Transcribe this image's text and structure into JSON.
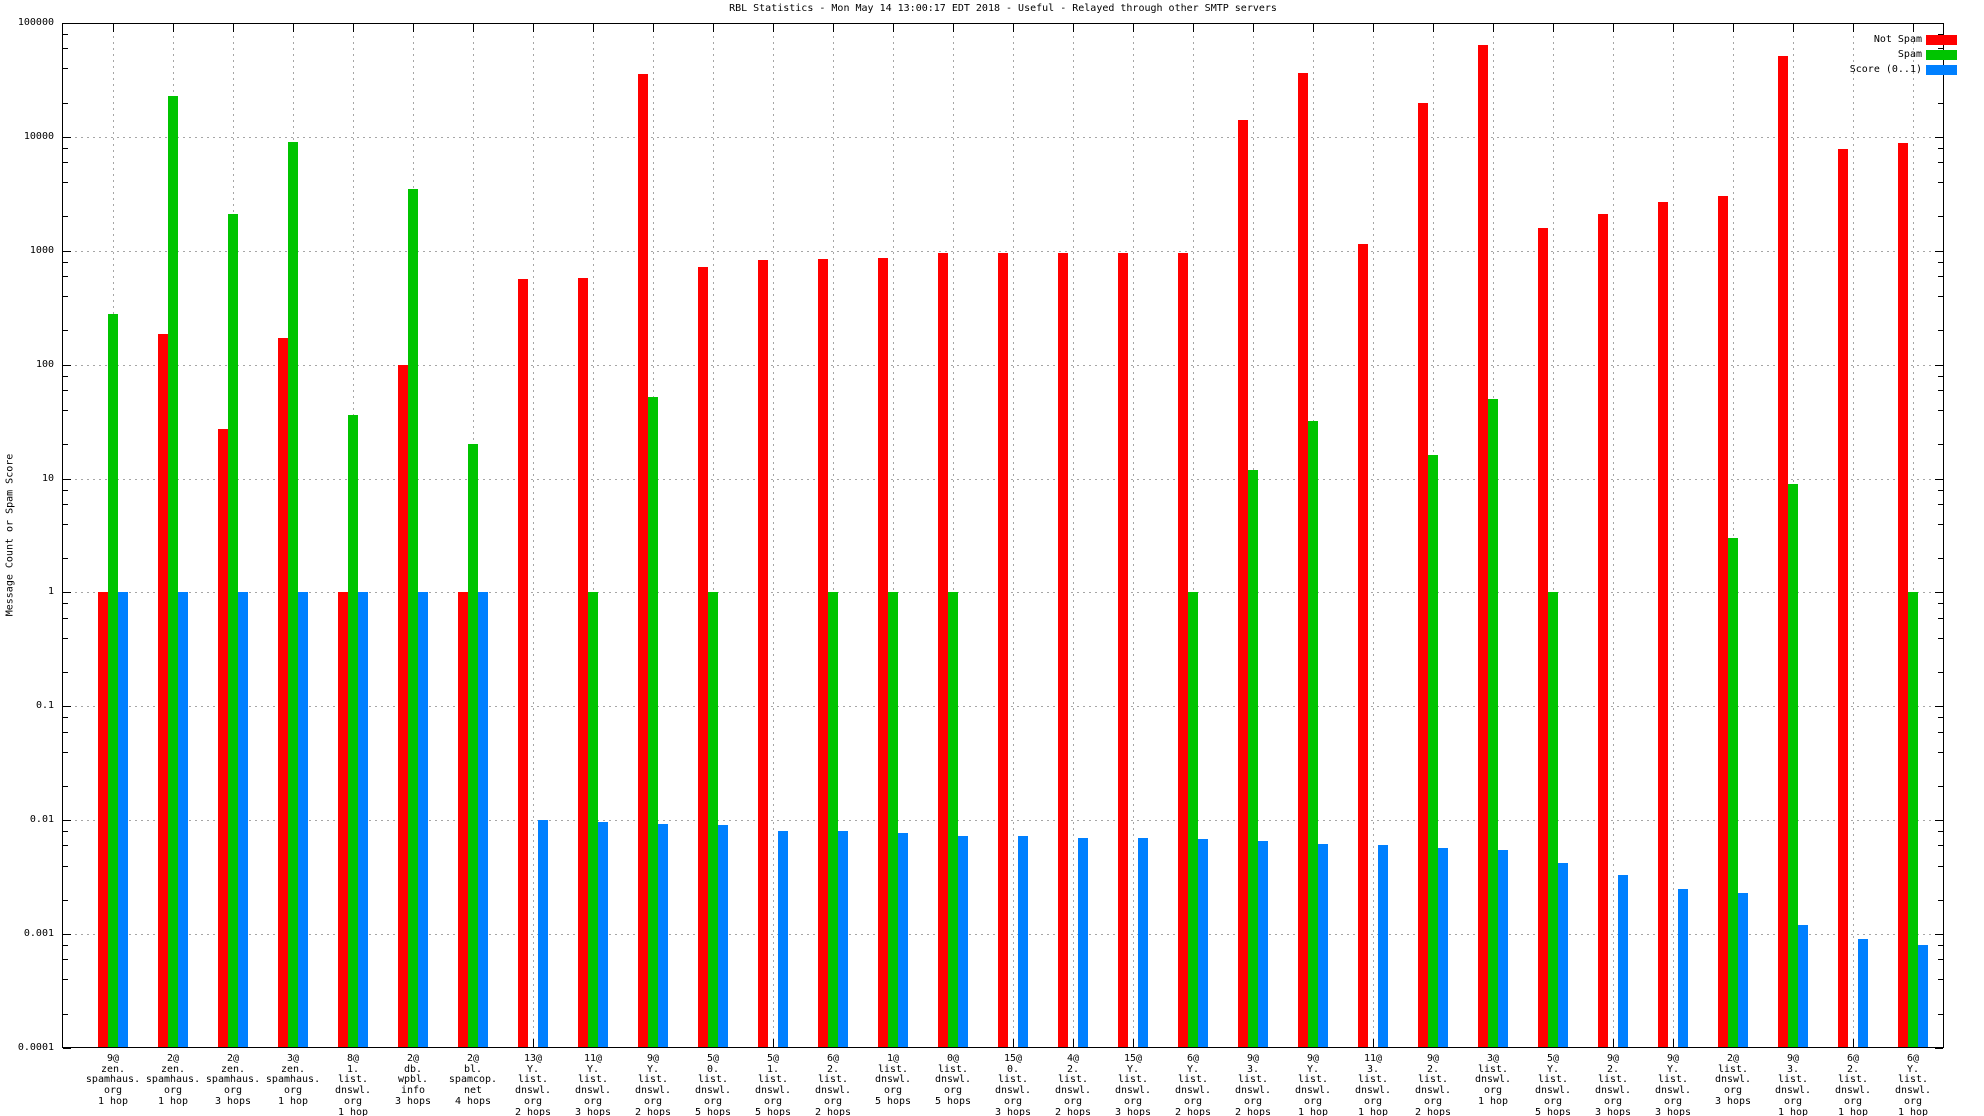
{
  "chart_data": {
    "type": "bar",
    "y_scale": "log",
    "ylim": [
      0.0001,
      100000
    ],
    "grid": true,
    "title": "RBL Statistics - Mon May 14 13:00:17 EDT 2018 - Useful - Relayed through other SMTP servers",
    "ylabel": "Message Count or Spam Score",
    "y_tick_labels": [
      "100000",
      "10000",
      "1000",
      "100",
      "10",
      "1",
      "0.1",
      "0.01",
      "0.001",
      "0.0001"
    ],
    "legend_position": "top-right",
    "series": [
      {
        "name": "Not Spam",
        "color": "#ff0000",
        "key": "not_spam"
      },
      {
        "name": "Spam",
        "color": "#00c400",
        "key": "spam"
      },
      {
        "name": "Score (0..1)",
        "color": "#0080ff",
        "key": "score"
      }
    ],
    "groups": [
      {
        "label": "9@ zen.spamhaus.org 1 hop",
        "label_lines": [
          "9@",
          "zen.",
          "spamhaus.",
          "org",
          "1 hop"
        ],
        "not_spam": 1,
        "spam": 280,
        "score": 1.0
      },
      {
        "label": "2@ zen.spamhaus.org 1 hop",
        "label_lines": [
          "2@",
          "zen.",
          "spamhaus.",
          "org",
          "1 hop"
        ],
        "not_spam": 185,
        "spam": 23000,
        "score": 1.0
      },
      {
        "label": "2@ zen.spamhaus.org 3 hops",
        "label_lines": [
          "2@",
          "zen.",
          "spamhaus.",
          "org",
          "3 hops"
        ],
        "not_spam": 27,
        "spam": 2100,
        "score": 1.0
      },
      {
        "label": "3@ zen.spamhaus.org 1 hop",
        "label_lines": [
          "3@",
          "zen.",
          "spamhaus.",
          "org",
          "1 hop"
        ],
        "not_spam": 170,
        "spam": 9100,
        "score": 1.0
      },
      {
        "label": "8@ 1.list.dnswl.org 1 hop",
        "label_lines": [
          "8@",
          "1.",
          "list.",
          "dnswl.",
          "org",
          "1 hop"
        ],
        "not_spam": 1,
        "spam": 36,
        "score": 1.0
      },
      {
        "label": "2@ db.wpbl.info 3 hops",
        "label_lines": [
          "2@",
          "db.",
          "wpbl.",
          "info",
          "3 hops"
        ],
        "not_spam": 100,
        "spam": 3500,
        "score": 1.0
      },
      {
        "label": "2@ bl.spamcop.net 4 hops",
        "label_lines": [
          "2@",
          "bl.",
          "spamcop.",
          "net",
          "4 hops"
        ],
        "not_spam": 1,
        "spam": 20,
        "score": 1.0
      },
      {
        "label": "13@ Y.list.dnswl.org 2 hops",
        "label_lines": [
          "13@",
          "Y.",
          "list.",
          "dnswl.",
          "org",
          "2 hops"
        ],
        "not_spam": 570,
        "spam": null,
        "score": 0.01
      },
      {
        "label": "11@ Y.list.dnswl.org 3 hops",
        "label_lines": [
          "11@",
          "Y.",
          "list.",
          "dnswl.",
          "org",
          "3 hops"
        ],
        "not_spam": 575,
        "spam": 1,
        "score": 0.0097
      },
      {
        "label": "9@ Y.list.dnswl.org 2 hops",
        "label_lines": [
          "9@",
          "Y.",
          "list.",
          "dnswl.",
          "org",
          "2 hops"
        ],
        "not_spam": 36000,
        "spam": 52,
        "score": 0.0092
      },
      {
        "label": "5@ 0.list.dnswl.org 5 hops",
        "label_lines": [
          "5@",
          "0.",
          "list.",
          "dnswl.",
          "org",
          "5 hops"
        ],
        "not_spam": 720,
        "spam": 1,
        "score": 0.009
      },
      {
        "label": "5@ 1.list.dnswl.org 5 hops",
        "label_lines": [
          "5@",
          "1.",
          "list.",
          "dnswl.",
          "org",
          "5 hops"
        ],
        "not_spam": 830,
        "spam": null,
        "score": 0.0081
      },
      {
        "label": "6@ 2.list.dnswl.org 2 hops",
        "label_lines": [
          "6@",
          "2.",
          "list.",
          "dnswl.",
          "org",
          "2 hops"
        ],
        "not_spam": 855,
        "spam": 1,
        "score": 0.008
      },
      {
        "label": "1@ list.dnswl.org 5 hops",
        "label_lines": [
          "1@",
          "list.",
          "dnswl.",
          "org",
          "5 hops"
        ],
        "not_spam": 860,
        "spam": 1,
        "score": 0.0078
      },
      {
        "label": "0@ list.dnswl.org 5 hops",
        "label_lines": [
          "0@",
          "list.",
          "dnswl.",
          "org",
          "5 hops"
        ],
        "not_spam": 950,
        "spam": 1,
        "score": 0.0072
      },
      {
        "label": "15@ 0.list.dnswl.org 3 hops",
        "label_lines": [
          "15@",
          "0.",
          "list.",
          "dnswl.",
          "org",
          "3 hops"
        ],
        "not_spam": 950,
        "spam": null,
        "score": 0.0072
      },
      {
        "label": "4@ 2.list.dnswl.org 2 hops",
        "label_lines": [
          "4@",
          "2.",
          "list.",
          "dnswl.",
          "org",
          "2 hops"
        ],
        "not_spam": 950,
        "spam": null,
        "score": 0.007
      },
      {
        "label": "15@ Y.list.dnswl.org 3 hops",
        "label_lines": [
          "15@",
          "Y.",
          "list.",
          "dnswl.",
          "org",
          "3 hops"
        ],
        "not_spam": 950,
        "spam": null,
        "score": 0.007
      },
      {
        "label": "6@ Y.list.dnswl.org 2 hops",
        "label_lines": [
          "6@",
          "Y.",
          "list.",
          "dnswl.",
          "org",
          "2 hops"
        ],
        "not_spam": 960,
        "spam": 1,
        "score": 0.0068
      },
      {
        "label": "9@ 3.list.dnswl.org 2 hops",
        "label_lines": [
          "9@",
          "3.",
          "list.",
          "dnswl.",
          "org",
          "2 hops"
        ],
        "not_spam": 14000,
        "spam": 12,
        "score": 0.0066
      },
      {
        "label": "9@ Y.list.dnswl.org 1 hop",
        "label_lines": [
          "9@",
          "Y.",
          "list.",
          "dnswl.",
          "org",
          "1 hop"
        ],
        "not_spam": 36500,
        "spam": 32,
        "score": 0.0062
      },
      {
        "label": "11@ 3.list.dnswl.org 1 hop",
        "label_lines": [
          "11@",
          "3.",
          "list.",
          "dnswl.",
          "org",
          "1 hop"
        ],
        "not_spam": 1150,
        "spam": null,
        "score": 0.006
      },
      {
        "label": "9@ 2.list.dnswl.org 2 hops",
        "label_lines": [
          "9@",
          "2.",
          "list.",
          "dnswl.",
          "org",
          "2 hops"
        ],
        "not_spam": 20000,
        "spam": 16,
        "score": 0.0057
      },
      {
        "label": "3@ list.dnswl.org 1 hop",
        "label_lines": [
          "3@",
          "list.",
          "dnswl.",
          "org",
          "1 hop"
        ],
        "not_spam": 64000,
        "spam": 50,
        "score": 0.0055
      },
      {
        "label": "5@ Y.list.dnswl.org 5 hops",
        "label_lines": [
          "5@",
          "Y.",
          "list.",
          "dnswl.",
          "org",
          "5 hops"
        ],
        "not_spam": 1600,
        "spam": 1,
        "score": 0.0042
      },
      {
        "label": "9@ 2.list.dnswl.org 3 hops",
        "label_lines": [
          "9@",
          "2.",
          "list.",
          "dnswl.",
          "org",
          "3 hops"
        ],
        "not_spam": 2100,
        "spam": null,
        "score": 0.0033
      },
      {
        "label": "9@ Y.list.dnswl.org 3 hops",
        "label_lines": [
          "9@",
          "Y.",
          "list.",
          "dnswl.",
          "org",
          "3 hops"
        ],
        "not_spam": 2700,
        "spam": null,
        "score": 0.0025
      },
      {
        "label": "2@ list.dnswl.org 3 hops",
        "label_lines": [
          "2@",
          "list.",
          "dnswl.",
          "org",
          "3 hops"
        ],
        "not_spam": 3000,
        "spam": 3,
        "score": 0.0023
      },
      {
        "label": "9@ 3.list.dnswl.org 1 hop",
        "label_lines": [
          "9@",
          "3.",
          "list.",
          "dnswl.",
          "org",
          "1 hop"
        ],
        "not_spam": 51000,
        "spam": 9,
        "score": 0.0012
      },
      {
        "label": "6@ 2.list.dnswl.org 1 hop",
        "label_lines": [
          "6@",
          "2.",
          "list.",
          "dnswl.",
          "org",
          "1 hop"
        ],
        "not_spam": 7800,
        "spam": null,
        "score": 0.0009
      },
      {
        "label": "6@ Y.list.dnswl.org 1 hop",
        "label_lines": [
          "6@",
          "Y.",
          "list.",
          "dnswl.",
          "org",
          "1 hop"
        ],
        "not_spam": 8800,
        "spam": 1,
        "score": 0.0008
      }
    ]
  },
  "colors": {
    "background": "#ffffff",
    "axis": "#000000",
    "grid": "#a6a6a6"
  }
}
